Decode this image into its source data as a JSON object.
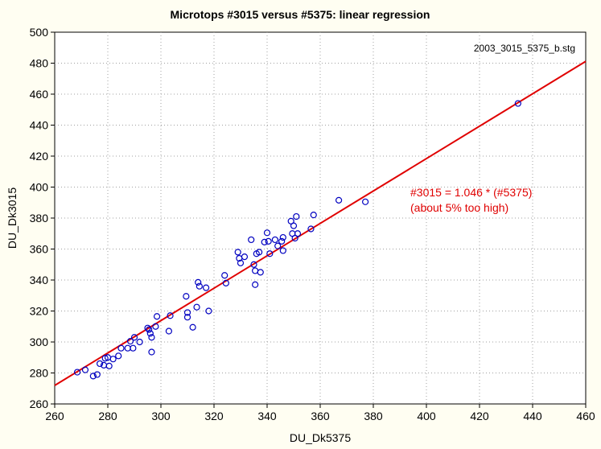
{
  "chart_data": {
    "type": "scatter",
    "title": "Microtops #3015 versus #5375: linear regression",
    "xlabel": "DU_Dk5375",
    "ylabel": "DU_Dk3015",
    "xlim": [
      260,
      460
    ],
    "ylim": [
      260,
      500
    ],
    "xticks": [
      "260",
      "280",
      "300",
      "320",
      "340",
      "360",
      "380",
      "400",
      "420",
      "440",
      "460"
    ],
    "yticks": [
      "260",
      "280",
      "300",
      "320",
      "340",
      "360",
      "380",
      "400",
      "420",
      "440",
      "460",
      "480",
      "500"
    ],
    "grid": true,
    "filename": "2003_3015_5375_b.stg",
    "annotation_lines": [
      "#3015 = 1.046 * (#5375)",
      "(about 5% too high)"
    ],
    "fit": {
      "slope": 1.046,
      "intercept": 0,
      "color": "#e00000"
    },
    "point_color": "#0000c0",
    "annotation_color": "#e00000",
    "points": [
      [
        268.5,
        280.5
      ],
      [
        271.5,
        282
      ],
      [
        274.5,
        278
      ],
      [
        276,
        279
      ],
      [
        277,
        286
      ],
      [
        278.5,
        285
      ],
      [
        279,
        289.5
      ],
      [
        280,
        290
      ],
      [
        280.5,
        284.5
      ],
      [
        282,
        289
      ],
      [
        284,
        291
      ],
      [
        285,
        296
      ],
      [
        287.5,
        296
      ],
      [
        288.5,
        300.5
      ],
      [
        289.5,
        296
      ],
      [
        290,
        303
      ],
      [
        292,
        300
      ],
      [
        295,
        309
      ],
      [
        295.5,
        308
      ],
      [
        296,
        305.5
      ],
      [
        296.5,
        303
      ],
      [
        296.5,
        293.5
      ],
      [
        298,
        310
      ],
      [
        298.5,
        316.5
      ],
      [
        303,
        307
      ],
      [
        303.5,
        317
      ],
      [
        309.5,
        329.5
      ],
      [
        310,
        316
      ],
      [
        310,
        319
      ],
      [
        312,
        309.5
      ],
      [
        313.5,
        322.5
      ],
      [
        314,
        338.5
      ],
      [
        314.5,
        336
      ],
      [
        317,
        335
      ],
      [
        318,
        320
      ],
      [
        324,
        343
      ],
      [
        324.5,
        338
      ],
      [
        329,
        358
      ],
      [
        329.5,
        354
      ],
      [
        330,
        351
      ],
      [
        331.5,
        355
      ],
      [
        334,
        366
      ],
      [
        335,
        350
      ],
      [
        335.5,
        346
      ],
      [
        335.5,
        337
      ],
      [
        336,
        357
      ],
      [
        337,
        358
      ],
      [
        337.5,
        345
      ],
      [
        339,
        364.5
      ],
      [
        340,
        370.5
      ],
      [
        340.5,
        365
      ],
      [
        341,
        357
      ],
      [
        343,
        366
      ],
      [
        344,
        362
      ],
      [
        345.5,
        365
      ],
      [
        346,
        367.5
      ],
      [
        346,
        359
      ],
      [
        349,
        378
      ],
      [
        349.5,
        370
      ],
      [
        350,
        375
      ],
      [
        350.5,
        367
      ],
      [
        351,
        381
      ],
      [
        351.5,
        370
      ],
      [
        356.5,
        373
      ],
      [
        357.5,
        382
      ],
      [
        367,
        391.5
      ],
      [
        377,
        390.5
      ],
      [
        434.5,
        454
      ]
    ]
  }
}
